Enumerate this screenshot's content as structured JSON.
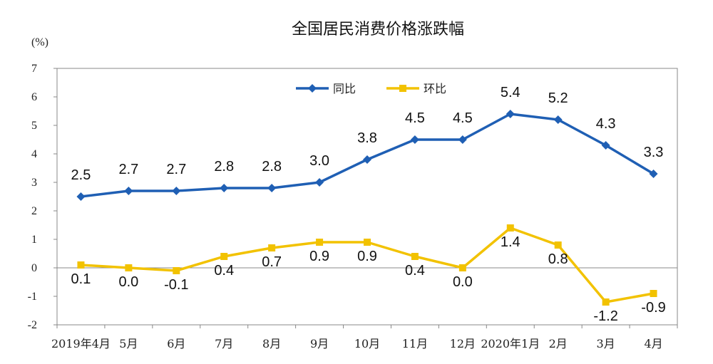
{
  "chart_data": {
    "type": "line",
    "title": "全国居民消费价格涨跌幅",
    "y_unit": "(%)",
    "ylim": [
      -2,
      7
    ],
    "y_ticks": [
      7,
      6,
      5,
      4,
      3,
      2,
      1,
      0,
      -1,
      -2
    ],
    "categories": [
      "2019年4月",
      "5月",
      "6月",
      "7月",
      "8月",
      "9月",
      "10月",
      "11月",
      "12月",
      "2020年1月",
      "2月",
      "3月",
      "4月"
    ],
    "legend_position": "top-center",
    "grid": false,
    "series": [
      {
        "name": "同比",
        "color": "#1f5fb4",
        "marker": "diamond",
        "values": [
          2.5,
          2.7,
          2.7,
          2.8,
          2.8,
          3.0,
          3.8,
          4.5,
          4.5,
          5.4,
          5.2,
          4.3,
          3.3
        ],
        "labels": [
          "2.5",
          "2.7",
          "2.7",
          "2.8",
          "2.8",
          "3.0",
          "3.8",
          "4.5",
          "4.5",
          "5.4",
          "5.2",
          "4.3",
          "3.3"
        ]
      },
      {
        "name": "环比",
        "color": "#f2c200",
        "marker": "square",
        "values": [
          0.1,
          0.0,
          -0.1,
          0.4,
          0.7,
          0.9,
          0.9,
          0.4,
          0.0,
          1.4,
          0.8,
          -1.2,
          -0.9
        ],
        "labels": [
          "0.1",
          "0.0",
          "-0.1",
          "0.4",
          "0.7",
          "0.9",
          "0.9",
          "0.4",
          "0.0",
          "1.4",
          "0.8",
          "-1.2",
          "-0.9"
        ]
      }
    ]
  }
}
